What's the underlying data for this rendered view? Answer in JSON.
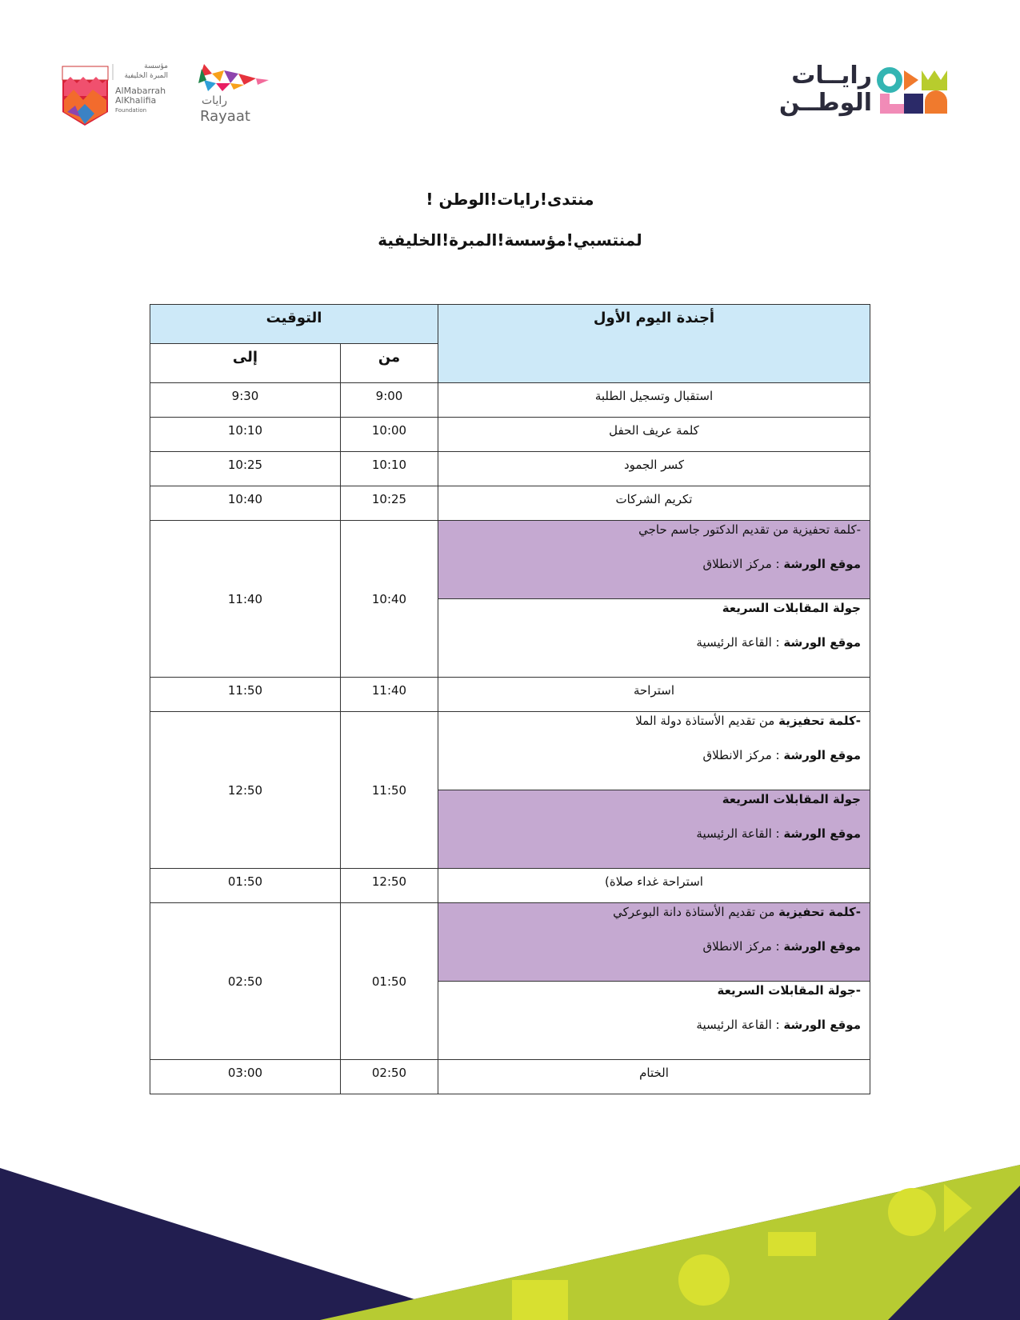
{
  "header": {
    "left_logo": {
      "arabic_line1": "مؤسسة",
      "arabic_line2": "المبرة الخليفية",
      "english_lines": [
        "AlMabarrah",
        "AlKhalifia",
        "Foundation"
      ]
    },
    "rayaat_logo": {
      "arabic": "رايات",
      "english": "Rayaat"
    },
    "right_logo": {
      "line1": "رايــات",
      "line2": "الوطــن"
    }
  },
  "title": {
    "line1": "منتدى!رايات!الوطن !",
    "line2": "لمنتسبي!مؤسسة!المبرة!الخليفية"
  },
  "table": {
    "header": {
      "agenda": "أجندة اليوم الأول",
      "timing": "التوقيت",
      "from": "من",
      "to": "إلى"
    },
    "header_color": "#cde9f8",
    "shade_color": "#c5a9d1",
    "rows": [
      {
        "from": "9:00",
        "to": "9:30",
        "agenda": "استقبال وتسجيل الطلبة"
      },
      {
        "from": "10:00",
        "to": "10:10",
        "agenda": "كلمة عريف الحفل"
      },
      {
        "from": "10:10",
        "to": "10:25",
        "agenda": "كسر الجمود"
      },
      {
        "from": "10:25",
        "to": "10:40",
        "agenda": "تكريم الشركات"
      },
      {
        "from": "10:40",
        "to": "11:40",
        "blocks": [
          {
            "shaded": true,
            "lines": [
              [
                {
                  "text": "-كلمة تحفيزية من تقديم الدكتور جاسم حاجي",
                  "bold": false
                }
              ],
              [
                {
                  "text": "موقع الورشة",
                  "bold": true
                },
                {
                  "text": " :  مركز الانطلاق",
                  "bold": false
                }
              ]
            ]
          },
          {
            "shaded": false,
            "lines": [
              [
                {
                  "text": "جولة المقابلات السريعة",
                  "bold": true
                }
              ],
              [
                {
                  "text": "موقع الورشة",
                  "bold": true
                },
                {
                  "text": " : القاعة الرئيسية",
                  "bold": false
                }
              ]
            ]
          }
        ]
      },
      {
        "from": "11:40",
        "to": "11:50",
        "agenda": "استراحة"
      },
      {
        "from": "11:50",
        "to": "12:50",
        "blocks": [
          {
            "shaded": false,
            "lines": [
              [
                {
                  "text": "-كلمة تحفيزية",
                  "bold": true
                },
                {
                  "text": " من تقديم الأستاذة دولة الملا",
                  "bold": false
                }
              ],
              [
                {
                  "text": "موقع الورشة",
                  "bold": true
                },
                {
                  "text": " :  مركز الانطلاق",
                  "bold": false
                }
              ]
            ]
          },
          {
            "shaded": true,
            "lines": [
              [
                {
                  "text": "جولة المقابلات السريعة",
                  "bold": true
                }
              ],
              [
                {
                  "text": "موقع الورشة",
                  "bold": true
                },
                {
                  "text": " : القاعة الرئيسية",
                  "bold": false
                }
              ]
            ]
          }
        ]
      },
      {
        "from": "12:50",
        "to": "01:50",
        "agenda": "استراحة  غداء   صلاة)"
      },
      {
        "from": "01:50",
        "to": "02:50",
        "blocks": [
          {
            "shaded": true,
            "lines": [
              [
                {
                  "text": "-كلمة تحفيزية",
                  "bold": true
                },
                {
                  "text": " من تقديم الأستاذة دانة البوعركي",
                  "bold": false
                }
              ],
              [
                {
                  "text": "موقع الورشة",
                  "bold": true
                },
                {
                  "text": " :  مركز الانطلاق",
                  "bold": false
                }
              ]
            ]
          },
          {
            "shaded": false,
            "lines": [
              [
                {
                  "text": "-جولة المقابلات السريعة",
                  "bold": true
                }
              ],
              [
                {
                  "text": "موقع الورشة",
                  "bold": true
                },
                {
                  "text": " : القاعة الرئيسية",
                  "bold": false
                }
              ]
            ]
          }
        ]
      },
      {
        "from": "02:50",
        "to": "03:00",
        "agenda": "الختام"
      }
    ]
  }
}
